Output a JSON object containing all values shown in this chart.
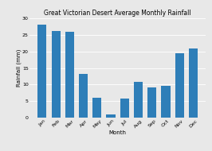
{
  "title": "Great Victorian Desert Average Monthly Rainfall",
  "xlabel": "Month",
  "ylabel": "Rainfall (mm)",
  "categories": [
    "Jan",
    "Feb",
    "Mar",
    "Apr",
    "May",
    "Jun",
    "Jul",
    "Aug",
    "Sep",
    "Oct",
    "Nov",
    "Dec"
  ],
  "values": [
    28.0,
    26.2,
    26.0,
    13.3,
    6.0,
    1.0,
    5.7,
    10.7,
    9.2,
    9.6,
    19.5,
    20.8
  ],
  "bar_color": "#2e7eb8",
  "ylim": [
    0,
    30
  ],
  "yticks": [
    0,
    5,
    10,
    15,
    20,
    25,
    30
  ],
  "background_color": "#e8e8e8",
  "title_fontsize": 5.5,
  "axis_label_fontsize": 5,
  "tick_fontsize": 4.5,
  "grid_color": "#ffffff",
  "bar_width": 0.65
}
